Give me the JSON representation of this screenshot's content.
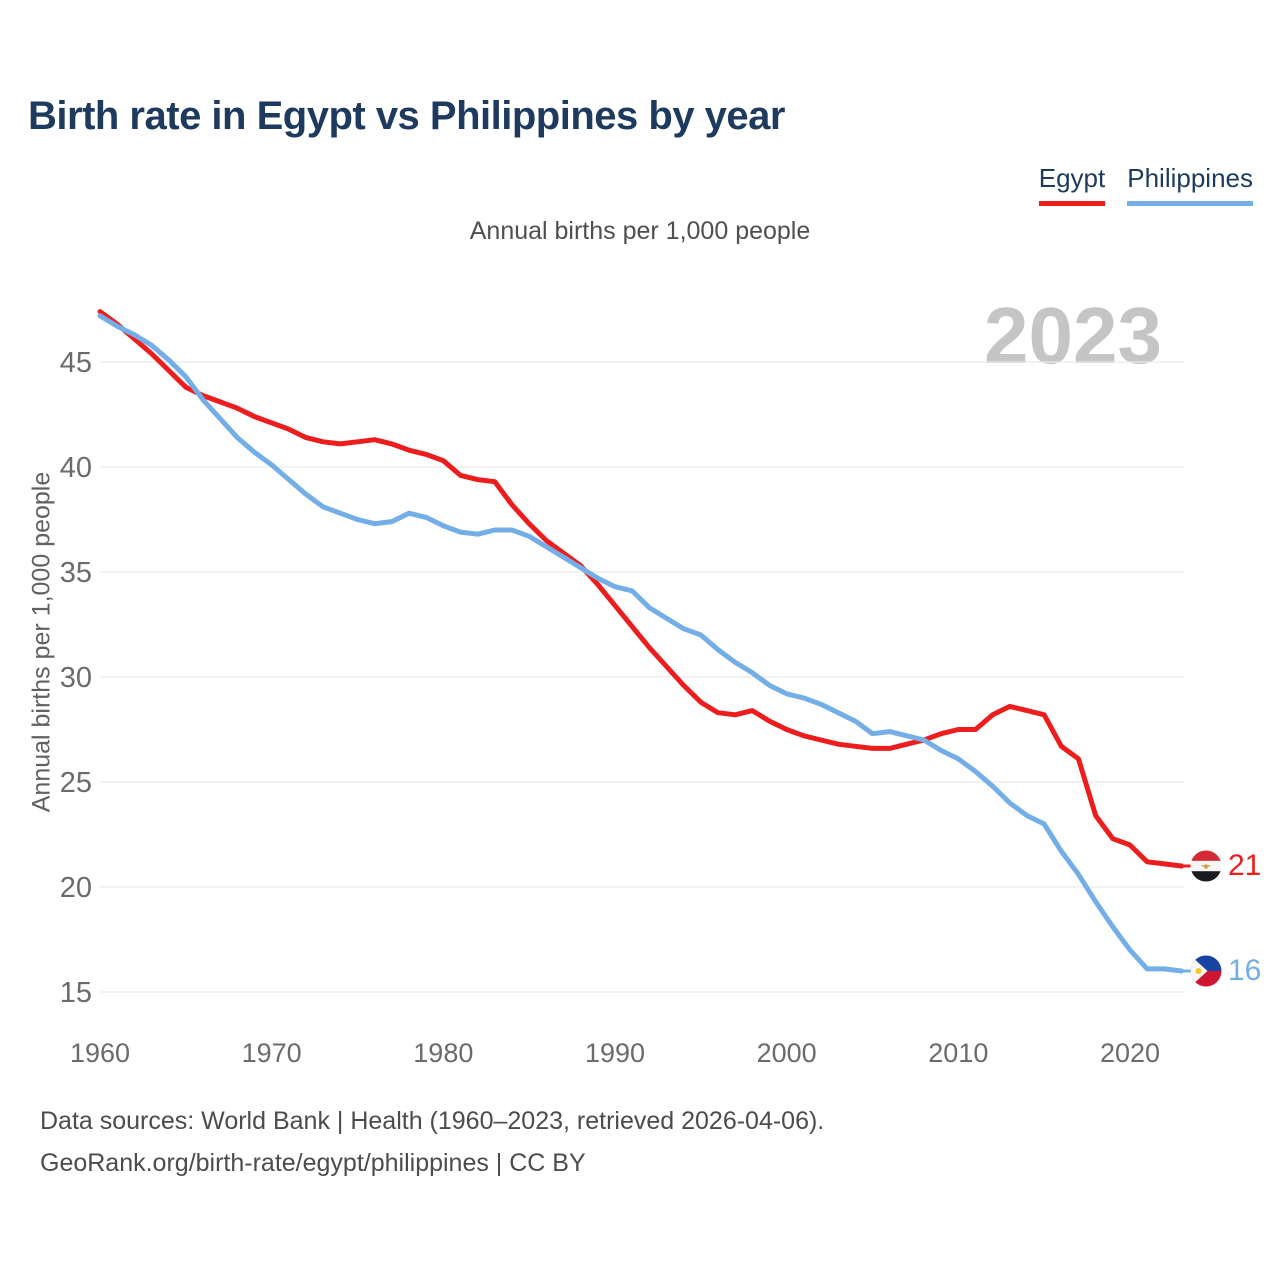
{
  "page": {
    "title": "Birth rate in Egypt vs Philippines by year",
    "subtitle": "Annual births per 1,000 people",
    "watermark": "2023",
    "footer_line1": "Data sources: World Bank | Health (1960–2023, retrieved 2026-04-06).",
    "footer_line2": "GeoRank.org/birth-rate/egypt/philippines | CC BY"
  },
  "legend": {
    "position": "top-right",
    "items": [
      {
        "label": "Egypt",
        "color": "#ee1d1d"
      },
      {
        "label": "Philippines",
        "color": "#74aee6"
      }
    ]
  },
  "chart_data": {
    "type": "line",
    "title": "Birth rate in Egypt vs Philippines by year",
    "subtitle": "Annual births per 1,000 people",
    "xlabel": "",
    "ylabel": "Annual births per 1,000 people",
    "xlim": [
      1960,
      2023
    ],
    "ylim": [
      15,
      45
    ],
    "grid": "horizontal",
    "legend_position": "top-right",
    "xticks": [
      1960,
      1970,
      1980,
      1990,
      2000,
      2010,
      2020
    ],
    "yticks": [
      15,
      20,
      25,
      30,
      35,
      40,
      45
    ],
    "x": [
      1960,
      1961,
      1962,
      1963,
      1964,
      1965,
      1966,
      1967,
      1968,
      1969,
      1970,
      1971,
      1972,
      1973,
      1974,
      1975,
      1976,
      1977,
      1978,
      1979,
      1980,
      1981,
      1982,
      1983,
      1984,
      1985,
      1986,
      1987,
      1988,
      1989,
      1990,
      1991,
      1992,
      1993,
      1994,
      1995,
      1996,
      1997,
      1998,
      1999,
      2000,
      2001,
      2002,
      2003,
      2004,
      2005,
      2006,
      2007,
      2008,
      2009,
      2010,
      2011,
      2012,
      2013,
      2014,
      2015,
      2016,
      2017,
      2018,
      2019,
      2020,
      2021,
      2022,
      2023
    ],
    "series": [
      {
        "name": "Egypt",
        "color": "#ee1d1d",
        "end_label": "21",
        "end_value": 21,
        "flag": "egypt-flag",
        "values": [
          47.4,
          46.8,
          46.1,
          45.4,
          44.6,
          43.8,
          43.4,
          43.1,
          42.8,
          42.4,
          42.1,
          41.8,
          41.4,
          41.2,
          41.1,
          41.2,
          41.3,
          41.1,
          40.8,
          40.6,
          40.3,
          39.6,
          39.4,
          39.3,
          38.2,
          37.3,
          36.5,
          35.9,
          35.3,
          34.4,
          33.4,
          32.4,
          31.4,
          30.5,
          29.6,
          28.8,
          28.3,
          28.2,
          28.4,
          27.9,
          27.5,
          27.2,
          27.0,
          26.8,
          26.7,
          26.6,
          26.6,
          26.8,
          27.0,
          27.3,
          27.5,
          27.5,
          28.2,
          28.6,
          28.4,
          28.2,
          26.7,
          26.1,
          23.4,
          22.3,
          22.0,
          21.2,
          21.1,
          21.0
        ]
      },
      {
        "name": "Philippines",
        "color": "#74aee6",
        "end_label": "16",
        "end_value": 16,
        "flag": "philippines-flag",
        "values": [
          47.2,
          46.7,
          46.3,
          45.8,
          45.1,
          44.3,
          43.2,
          42.3,
          41.4,
          40.7,
          40.1,
          39.4,
          38.7,
          38.1,
          37.8,
          37.5,
          37.3,
          37.4,
          37.8,
          37.6,
          37.2,
          36.9,
          36.8,
          37.0,
          37.0,
          36.7,
          36.2,
          35.7,
          35.2,
          34.7,
          34.3,
          34.1,
          33.3,
          32.8,
          32.3,
          32.0,
          31.3,
          30.7,
          30.2,
          29.6,
          29.2,
          29.0,
          28.7,
          28.3,
          27.9,
          27.3,
          27.4,
          27.2,
          27.0,
          26.5,
          26.1,
          25.5,
          24.8,
          24.0,
          23.4,
          23.0,
          21.7,
          20.6,
          19.3,
          18.1,
          17.0,
          16.1,
          16.1,
          16.0
        ]
      }
    ]
  }
}
